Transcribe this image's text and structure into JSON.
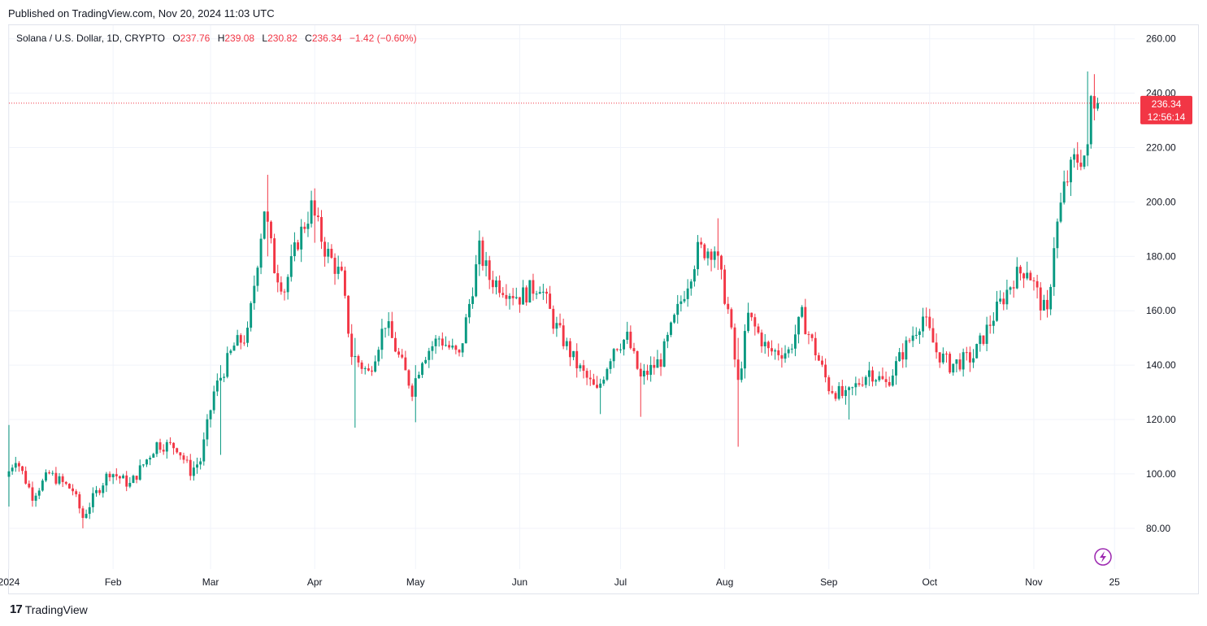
{
  "header": {
    "published": "Published on TradingView.com, Nov 20, 2024 11:03 UTC"
  },
  "legend": {
    "symbol": "Solana / U.S. Dollar, 1D, CRYPTO",
    "o_label": "O",
    "o_value": "237.76",
    "h_label": "H",
    "h_value": "239.08",
    "l_label": "L",
    "l_value": "230.82",
    "c_label": "C",
    "c_value": "236.34",
    "change": "−1.42 (−0.60%)"
  },
  "price_badge": {
    "price": "236.34",
    "countdown": "12:56:14"
  },
  "footer": {
    "brand": "TradingView"
  },
  "colors": {
    "up": "#089981",
    "down": "#f23645",
    "grid": "#f0f3fa",
    "badge": "#f23645"
  },
  "chart_data": {
    "type": "candlestick",
    "ylim": [
      65,
      265
    ],
    "price_line": 236.34,
    "y_ticks": [
      {
        "value": 80,
        "label": "80.00"
      },
      {
        "value": 100,
        "label": "100.00"
      },
      {
        "value": 120,
        "label": "120.00"
      },
      {
        "value": 140,
        "label": "140.00"
      },
      {
        "value": 160,
        "label": "160.00"
      },
      {
        "value": 180,
        "label": "180.00"
      },
      {
        "value": 200,
        "label": "200.00"
      },
      {
        "value": 220,
        "label": "220.00"
      },
      {
        "value": 240,
        "label": "240.00"
      },
      {
        "value": 260,
        "label": "260.00"
      }
    ],
    "x_ticks": [
      {
        "date": "2024-01-01",
        "label": "2024"
      },
      {
        "date": "2024-02-01",
        "label": "Feb"
      },
      {
        "date": "2024-03-01",
        "label": "Mar"
      },
      {
        "date": "2024-04-01",
        "label": "Apr"
      },
      {
        "date": "2024-05-01",
        "label": "May"
      },
      {
        "date": "2024-06-01",
        "label": "Jun"
      },
      {
        "date": "2024-07-01",
        "label": "Jul"
      },
      {
        "date": "2024-08-01",
        "label": "Aug"
      },
      {
        "date": "2024-09-01",
        "label": "Sep"
      },
      {
        "date": "2024-10-01",
        "label": "Oct"
      },
      {
        "date": "2024-11-01",
        "label": "Nov"
      },
      {
        "date": "2024-11-25",
        "label": "25"
      }
    ],
    "x_range": [
      "2024-01-01",
      "2024-12-01"
    ],
    "close_keypoints": [
      [
        "2024-01-01",
        101
      ],
      [
        "2024-01-03",
        106
      ],
      [
        "2024-01-08",
        92
      ],
      [
        "2024-01-13",
        100
      ],
      [
        "2024-01-20",
        94
      ],
      [
        "2024-01-23",
        84
      ],
      [
        "2024-01-26",
        91
      ],
      [
        "2024-01-31",
        101
      ],
      [
        "2024-02-06",
        96
      ],
      [
        "2024-02-14",
        111
      ],
      [
        "2024-02-20",
        110
      ],
      [
        "2024-02-24",
        101
      ],
      [
        "2024-02-27",
        105
      ],
      [
        "2024-03-02",
        130
      ],
      [
        "2024-03-08",
        147
      ],
      [
        "2024-03-12",
        151
      ],
      [
        "2024-03-17",
        198
      ],
      [
        "2024-03-20",
        176
      ],
      [
        "2024-03-23",
        168
      ],
      [
        "2024-03-27",
        186
      ],
      [
        "2024-03-31",
        198
      ],
      [
        "2024-04-04",
        183
      ],
      [
        "2024-04-09",
        172
      ],
      [
        "2024-04-12",
        144
      ],
      [
        "2024-04-17",
        137
      ],
      [
        "2024-04-22",
        156
      ],
      [
        "2024-04-26",
        143
      ],
      [
        "2024-04-30",
        131
      ],
      [
        "2024-05-03",
        143
      ],
      [
        "2024-05-08",
        150
      ],
      [
        "2024-05-14",
        143
      ],
      [
        "2024-05-20",
        182
      ],
      [
        "2024-05-23",
        172
      ],
      [
        "2024-06-01",
        165
      ],
      [
        "2024-06-07",
        170
      ],
      [
        "2024-06-11",
        156
      ],
      [
        "2024-06-18",
        140
      ],
      [
        "2024-06-24",
        130
      ],
      [
        "2024-06-29",
        147
      ],
      [
        "2024-07-03",
        150
      ],
      [
        "2024-07-07",
        135
      ],
      [
        "2024-07-13",
        142
      ],
      [
        "2024-07-18",
        160
      ],
      [
        "2024-07-24",
        182
      ],
      [
        "2024-07-29",
        183
      ],
      [
        "2024-08-02",
        160
      ],
      [
        "2024-08-05",
        133
      ],
      [
        "2024-08-08",
        158
      ],
      [
        "2024-08-14",
        145
      ],
      [
        "2024-08-20",
        145
      ],
      [
        "2024-08-24",
        158
      ],
      [
        "2024-08-28",
        145
      ],
      [
        "2024-09-01",
        132
      ],
      [
        "2024-09-06",
        128
      ],
      [
        "2024-09-13",
        138
      ],
      [
        "2024-09-18",
        133
      ],
      [
        "2024-09-24",
        147
      ],
      [
        "2024-09-29",
        158
      ],
      [
        "2024-10-03",
        145
      ],
      [
        "2024-10-07",
        140
      ],
      [
        "2024-10-14",
        143
      ],
      [
        "2024-10-20",
        158
      ],
      [
        "2024-10-26",
        172
      ],
      [
        "2024-10-30",
        176
      ],
      [
        "2024-11-03",
        163
      ],
      [
        "2024-11-05",
        158
      ],
      [
        "2024-11-07",
        185
      ],
      [
        "2024-11-10",
        205
      ],
      [
        "2024-11-13",
        215
      ],
      [
        "2024-11-17",
        218
      ],
      [
        "2024-11-18",
        238
      ],
      [
        "2024-11-19",
        237.76
      ],
      [
        "2024-11-20",
        236.34
      ]
    ],
    "spikes": [
      [
        "2024-01-01",
        118,
        88
      ],
      [
        "2024-01-23",
        85,
        80
      ],
      [
        "2024-03-04",
        140,
        107
      ],
      [
        "2024-03-18",
        210,
        180
      ],
      [
        "2024-04-01",
        205,
        185
      ],
      [
        "2024-04-13",
        150,
        117
      ],
      [
        "2024-05-01",
        140,
        119
      ],
      [
        "2024-05-20",
        189,
        175
      ],
      [
        "2024-06-25",
        135,
        122
      ],
      [
        "2024-07-07",
        140,
        121
      ],
      [
        "2024-07-30",
        194,
        175
      ],
      [
        "2024-08-05",
        150,
        110
      ],
      [
        "2024-09-07",
        130,
        120
      ],
      [
        "2024-11-17",
        248,
        225
      ],
      [
        "2024-11-19",
        247,
        230
      ]
    ]
  }
}
